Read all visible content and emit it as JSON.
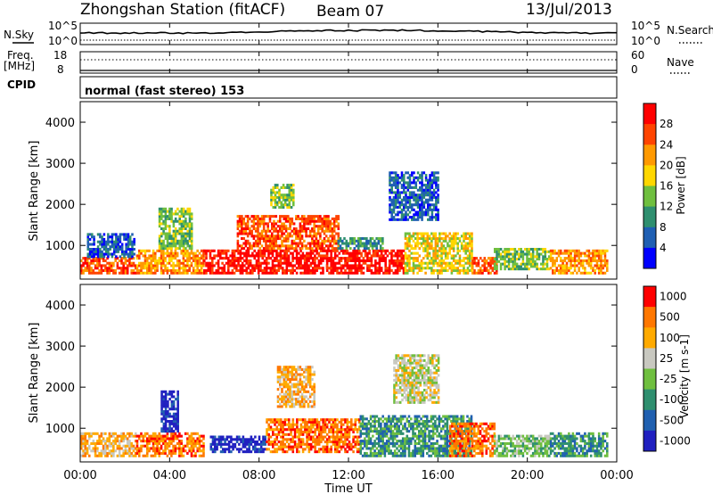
{
  "header": {
    "station": "Zhongshan Station (fitACF)",
    "beam": "Beam 07",
    "date": "13/Jul/2013",
    "cpid_label": "CPID",
    "cpid_value": "normal (fast stereo) 153"
  },
  "strip_noise": {
    "left_label": "N.Sky",
    "right_label": "N.Search",
    "left_ticks": [
      "10^5",
      "10^0"
    ],
    "right_ticks": [
      "10^5",
      "10^0"
    ]
  },
  "strip_freq": {
    "left_label_1": "Freq.",
    "left_label_2": "[MHz]",
    "right_label": "Nave",
    "left_ticks": [
      "18",
      "8"
    ],
    "right_ticks": [
      "60",
      "0"
    ]
  },
  "colors": {
    "power": [
      "#0000ff",
      "#1f5fb3",
      "#2f8f6f",
      "#6fbf3f",
      "#ffd700",
      "#ff9900",
      "#ff4400",
      "#ff0000"
    ],
    "velocity": [
      "#2020c0",
      "#2060b0",
      "#2f8f6f",
      "#6fbf3f",
      "#c8c8c0",
      "#ffaa00",
      "#ff7700",
      "#ff0000"
    ]
  },
  "chart_data": [
    {
      "type": "heatmap",
      "panel": "power",
      "ylabel": "Slant Range [km]",
      "colorbar_label": "Power [dB]",
      "colorbar_ticks": [
        "28",
        "24",
        "20",
        "16",
        "12",
        "8",
        "4"
      ],
      "y_ticks": [
        "4000",
        "3000",
        "2000",
        "1000"
      ],
      "ylim": [
        180,
        4500
      ],
      "xlim": [
        0,
        24
      ],
      "regions": [
        {
          "t0": 0.0,
          "t1": 2.5,
          "r0": 300,
          "r1": 700,
          "level": 6
        },
        {
          "t0": 0.3,
          "t1": 2.4,
          "r0": 700,
          "r1": 1300,
          "level": 1
        },
        {
          "t0": 2.5,
          "t1": 5.5,
          "r0": 300,
          "r1": 900,
          "level": 5
        },
        {
          "t0": 3.5,
          "t1": 5.0,
          "r0": 900,
          "r1": 1900,
          "level": 3
        },
        {
          "t0": 5.5,
          "t1": 11.0,
          "r0": 300,
          "r1": 900,
          "level": 7
        },
        {
          "t0": 7.0,
          "t1": 11.5,
          "r0": 900,
          "r1": 1700,
          "level": 6
        },
        {
          "t0": 8.5,
          "t1": 9.5,
          "r0": 1900,
          "r1": 2500,
          "level": 3
        },
        {
          "t0": 11.0,
          "t1": 14.5,
          "r0": 300,
          "r1": 900,
          "level": 7
        },
        {
          "t0": 11.5,
          "t1": 13.5,
          "r0": 900,
          "r1": 1200,
          "level": 2
        },
        {
          "t0": 13.8,
          "t1": 16.0,
          "r0": 1600,
          "r1": 2800,
          "level": 1
        },
        {
          "t0": 14.5,
          "t1": 17.5,
          "r0": 300,
          "r1": 1300,
          "level": 4
        },
        {
          "t0": 17.5,
          "t1": 18.6,
          "r0": 300,
          "r1": 700,
          "level": 6
        },
        {
          "t0": 18.5,
          "t1": 21.0,
          "r0": 400,
          "r1": 900,
          "level": 3
        },
        {
          "t0": 21.0,
          "t1": 23.6,
          "r0": 300,
          "r1": 900,
          "level": 5
        }
      ]
    },
    {
      "type": "heatmap",
      "panel": "velocity",
      "ylabel": "Slant Range [km]",
      "colorbar_label": "Velocity [m s-1]",
      "colorbar_ticks": [
        "1000",
        "500",
        "100",
        "25",
        "-25",
        "-100",
        "-500",
        "-1000"
      ],
      "y_ticks": [
        "4000",
        "3000",
        "2000",
        "1000"
      ],
      "ylim": [
        180,
        4500
      ],
      "xlim": [
        0,
        24
      ],
      "x_ticks": [
        "00:00",
        "04:00",
        "08:00",
        "12:00",
        "16:00",
        "20:00",
        "00:00"
      ],
      "xlabel": "Time UT",
      "regions": [
        {
          "t0": 0.0,
          "t1": 2.5,
          "r0": 300,
          "r1": 900,
          "level": 5
        },
        {
          "t0": 2.5,
          "t1": 5.5,
          "r0": 300,
          "r1": 900,
          "level": 6
        },
        {
          "t0": 3.6,
          "t1": 4.4,
          "r0": 900,
          "r1": 1900,
          "level": 0
        },
        {
          "t0": 5.8,
          "t1": 8.3,
          "r0": 400,
          "r1": 800,
          "level": 0
        },
        {
          "t0": 8.3,
          "t1": 12.5,
          "r0": 400,
          "r1": 1200,
          "level": 6
        },
        {
          "t0": 8.8,
          "t1": 10.5,
          "r0": 1500,
          "r1": 2500,
          "level": 5
        },
        {
          "t0": 12.5,
          "t1": 17.5,
          "r0": 300,
          "r1": 1300,
          "level": 2
        },
        {
          "t0": 14.0,
          "t1": 16.0,
          "r0": 1600,
          "r1": 2800,
          "level": 4
        },
        {
          "t0": 16.5,
          "t1": 18.5,
          "r0": 300,
          "r1": 1100,
          "level": 6
        },
        {
          "t0": 18.5,
          "t1": 21.0,
          "r0": 300,
          "r1": 800,
          "level": 3
        },
        {
          "t0": 21.0,
          "t1": 23.6,
          "r0": 300,
          "r1": 900,
          "level": 2
        }
      ]
    }
  ]
}
